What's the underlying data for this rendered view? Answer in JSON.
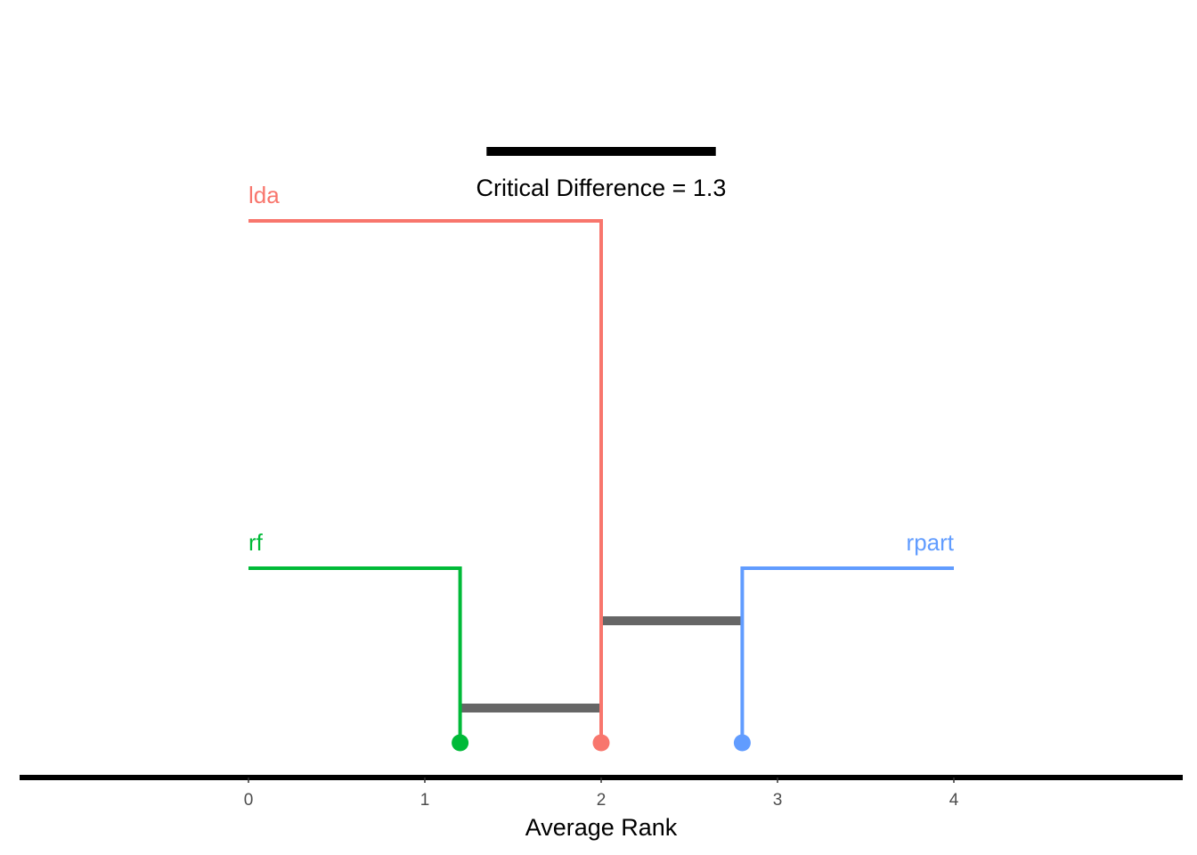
{
  "chart_data": {
    "type": "critical-difference",
    "xlabel": "Average Rank",
    "xlim": [
      0,
      4
    ],
    "ticks": [
      "0",
      "1",
      "2",
      "3",
      "4"
    ],
    "critical_difference": {
      "value": 1.3,
      "label": "Critical Difference = 1.3",
      "center_rank": 2
    },
    "learners": [
      {
        "name": "lda",
        "rank": 2.0,
        "color": "#F8766D",
        "label_side": "left"
      },
      {
        "name": "rf",
        "rank": 1.2,
        "color": "#00BA38",
        "label_side": "left"
      },
      {
        "name": "rpart",
        "rank": 2.8,
        "color": "#619CFF",
        "label_side": "right"
      }
    ],
    "nemenyi_bars": [
      {
        "from": 1.2,
        "to": 2.0
      },
      {
        "from": 2.0,
        "to": 2.8
      }
    ],
    "bar_color": "#666666",
    "grid": false
  }
}
